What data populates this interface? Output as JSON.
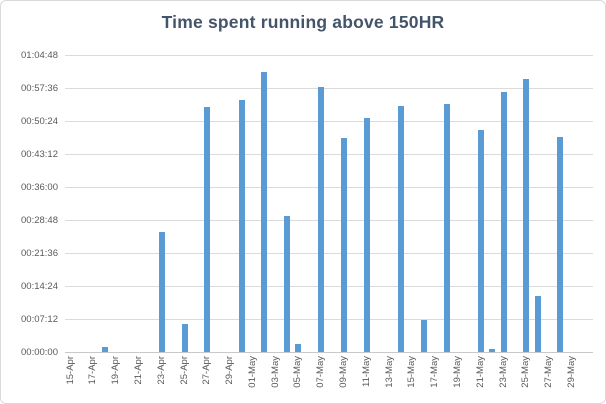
{
  "chart_data": {
    "type": "bar",
    "title": "Time spent running above 150HR",
    "xlabel": "",
    "ylabel": "",
    "grid": true,
    "legend": false,
    "bar_color": "#5B9BD5",
    "ylim_seconds": [
      0,
      3888
    ],
    "y_tick_interval_seconds": 432,
    "y_tick_labels": [
      "00:00:00",
      "00:07:12",
      "00:14:24",
      "00:21:36",
      "00:28:48",
      "00:36:00",
      "00:43:12",
      "00:50:24",
      "00:57:36",
      "01:04:48"
    ],
    "categories": [
      "15-Apr",
      "16-Apr",
      "17-Apr",
      "18-Apr",
      "19-Apr",
      "20-Apr",
      "21-Apr",
      "22-Apr",
      "23-Apr",
      "24-Apr",
      "25-Apr",
      "26-Apr",
      "27-Apr",
      "28-Apr",
      "29-Apr",
      "30-Apr",
      "01-May",
      "02-May",
      "03-May",
      "04-May",
      "05-May",
      "06-May",
      "07-May",
      "08-May",
      "09-May",
      "10-May",
      "11-May",
      "12-May",
      "13-May",
      "14-May",
      "15-May",
      "16-May",
      "17-May",
      "18-May",
      "19-May",
      "20-May",
      "21-May",
      "22-May",
      "23-May",
      "24-May",
      "25-May",
      "26-May",
      "27-May",
      "28-May",
      "29-May",
      "30-May"
    ],
    "x_tick_labels": [
      "15-Apr",
      "17-Apr",
      "19-Apr",
      "21-Apr",
      "23-Apr",
      "25-Apr",
      "27-Apr",
      "29-Apr",
      "01-May",
      "03-May",
      "05-May",
      "07-May",
      "09-May",
      "11-May",
      "13-May",
      "15-May",
      "17-May",
      "19-May",
      "21-May",
      "23-May",
      "25-May",
      "27-May",
      "29-May"
    ],
    "bars": [
      {
        "date": "18-Apr",
        "time": "00:01:10",
        "seconds": 70
      },
      {
        "date": "23-Apr",
        "time": "00:26:15",
        "seconds": 1575
      },
      {
        "date": "25-Apr",
        "time": "00:06:00",
        "seconds": 360
      },
      {
        "date": "27-Apr",
        "time": "00:53:30",
        "seconds": 3210
      },
      {
        "date": "30-Apr",
        "time": "00:55:00",
        "seconds": 3300
      },
      {
        "date": "02-May",
        "time": "01:01:00",
        "seconds": 3660
      },
      {
        "date": "04-May",
        "time": "00:29:35",
        "seconds": 1775
      },
      {
        "date": "05-May",
        "time": "00:01:50",
        "seconds": 110
      },
      {
        "date": "07-May",
        "time": "00:57:45",
        "seconds": 3465
      },
      {
        "date": "09-May",
        "time": "00:46:45",
        "seconds": 2805
      },
      {
        "date": "11-May",
        "time": "00:51:00",
        "seconds": 3060
      },
      {
        "date": "14-May",
        "time": "00:53:45",
        "seconds": 3225
      },
      {
        "date": "16-May",
        "time": "00:06:55",
        "seconds": 415
      },
      {
        "date": "18-May",
        "time": "00:54:00",
        "seconds": 3240
      },
      {
        "date": "21-May",
        "time": "00:48:30",
        "seconds": 2910
      },
      {
        "date": "22-May",
        "time": "00:00:45",
        "seconds": 45
      },
      {
        "date": "23-May",
        "time": "00:56:40",
        "seconds": 3400
      },
      {
        "date": "25-May",
        "time": "00:59:35",
        "seconds": 3575
      },
      {
        "date": "26-May",
        "time": "00:12:10",
        "seconds": 730
      },
      {
        "date": "28-May",
        "time": "00:46:55",
        "seconds": 2815
      }
    ]
  },
  "colors": {
    "title": "#44546A",
    "axis_text": "#595959",
    "gridline": "#DBDBDB",
    "axis_line": "#C9C9C9",
    "chart_border": "#D9D9D9",
    "background": "#FFFFFF"
  }
}
